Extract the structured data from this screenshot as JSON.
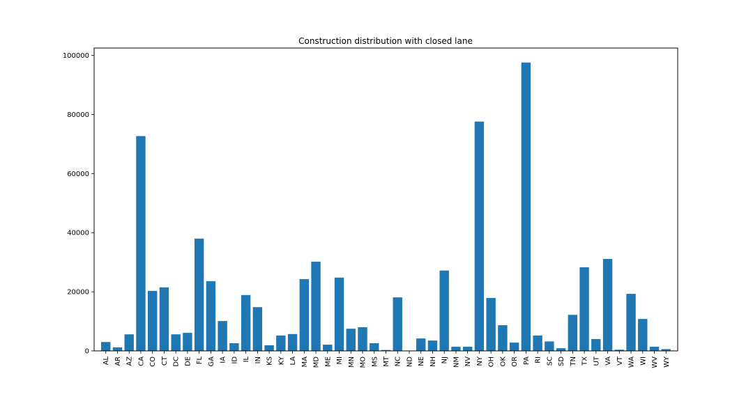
{
  "chart_data": {
    "type": "bar",
    "title": "Construction distribution with closed lane",
    "xlabel": "",
    "ylabel": "",
    "ylim": [
      0,
      102500
    ],
    "yticks": [
      0,
      20000,
      40000,
      60000,
      80000,
      100000
    ],
    "grid": false,
    "bar_color": "#1f77b4",
    "categories": [
      "AL",
      "AR",
      "AZ",
      "CA",
      "CO",
      "CT",
      "DC",
      "DE",
      "FL",
      "GA",
      "IA",
      "ID",
      "IL",
      "IN",
      "KS",
      "KY",
      "LA",
      "MA",
      "MD",
      "ME",
      "MI",
      "MN",
      "MO",
      "MS",
      "MT",
      "NC",
      "ND",
      "NE",
      "NH",
      "NJ",
      "NM",
      "NV",
      "NY",
      "OH",
      "OK",
      "OR",
      "PA",
      "RI",
      "SC",
      "SD",
      "TN",
      "TX",
      "UT",
      "VA",
      "VT",
      "WA",
      "WI",
      "WV",
      "WY"
    ],
    "values": [
      3000,
      1200,
      5600,
      72700,
      20300,
      21500,
      5600,
      6100,
      38000,
      23600,
      10100,
      2600,
      18900,
      14800,
      1900,
      5200,
      5700,
      24300,
      30200,
      2100,
      24800,
      7500,
      8000,
      2600,
      300,
      18100,
      0,
      4200,
      3500,
      27200,
      1400,
      1400,
      77600,
      17900,
      8700,
      2800,
      97600,
      5200,
      3200,
      900,
      12200,
      28300,
      4000,
      31100,
      400,
      19300,
      10800,
      1400,
      600
    ]
  }
}
